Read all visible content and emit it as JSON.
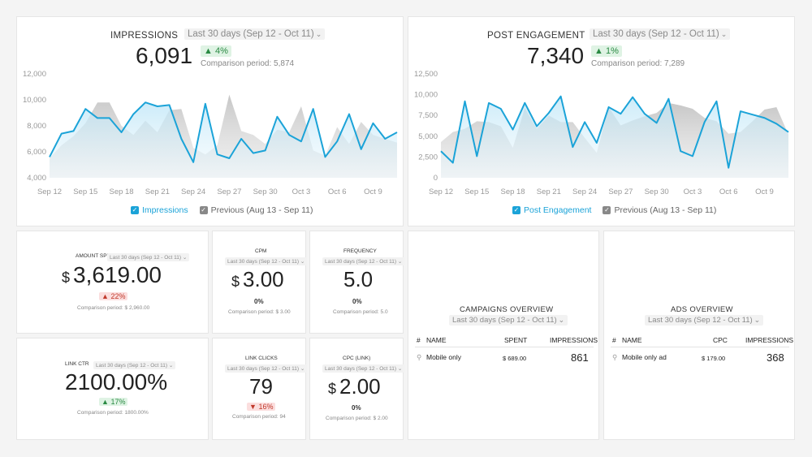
{
  "impressions": {
    "title": "IMPRESSIONS",
    "period": "Last 30 days (Sep 12 - Oct 11)",
    "value": "6,091",
    "change": "4%",
    "comparison": "Comparison period: 5,874",
    "legend_current": "Impressions",
    "legend_previous": "Previous (Aug 13 - Sep 11)",
    "chart_data": {
      "type": "area",
      "y_ticks": [
        "12,000",
        "10,000",
        "8,000",
        "6,000",
        "4,000"
      ],
      "x_ticks": [
        "Sep 12",
        "Sep 15",
        "Sep 18",
        "Sep 21",
        "Sep 24",
        "Sep 27",
        "Sep 30",
        "Oct 3",
        "Oct 6",
        "Oct 9"
      ],
      "ylim": [
        4000,
        12000
      ],
      "current": [
        5600,
        7400,
        7600,
        9300,
        8600,
        8600,
        7500,
        8900,
        9800,
        9500,
        9600,
        7000,
        5200,
        9700,
        5800,
        5500,
        7000,
        5900,
        6100,
        8700,
        7300,
        6800,
        9300,
        5600,
        6800,
        8900,
        6200,
        8200,
        7000,
        7500
      ],
      "previous": [
        5500,
        6500,
        7200,
        8200,
        9800,
        9800,
        8000,
        7300,
        8400,
        7500,
        9200,
        9300,
        6300,
        5800,
        6500,
        10400,
        7600,
        7300,
        6600,
        7700,
        7500,
        9500,
        6100,
        5700,
        7900,
        6600,
        8300,
        7300,
        7000,
        6700
      ]
    }
  },
  "engagement": {
    "title": "POST ENGAGEMENT",
    "period": "Last 30 days (Sep 12 - Oct 11)",
    "value": "7,340",
    "change": "1%",
    "comparison": "Comparison period: 7,289",
    "legend_current": "Post Engagement",
    "legend_previous": "Previous (Aug 13 - Sep 11)",
    "chart_data": {
      "type": "area",
      "y_ticks": [
        "12,500",
        "10,000",
        "7,500",
        "5,000",
        "2,500",
        "0"
      ],
      "x_ticks": [
        "Sep 12",
        "Sep 15",
        "Sep 18",
        "Sep 21",
        "Sep 24",
        "Sep 27",
        "Sep 30",
        "Oct 3",
        "Oct 6",
        "Oct 9"
      ],
      "ylim": [
        0,
        12500
      ],
      "current": [
        3200,
        1800,
        9200,
        2600,
        9000,
        8300,
        5800,
        9000,
        6200,
        7800,
        9800,
        3700,
        6700,
        4200,
        8500,
        7700,
        9700,
        7700,
        6600,
        9500,
        3200,
        2600,
        6700,
        9200,
        1200,
        8000,
        7600,
        7200,
        6500,
        5500
      ],
      "previous": [
        4300,
        5500,
        5900,
        6800,
        6700,
        6200,
        3600,
        8400,
        5900,
        7500,
        6700,
        6700,
        4800,
        3000,
        8500,
        6300,
        6900,
        7400,
        7800,
        9000,
        8700,
        8300,
        7200,
        6800,
        5300,
        5500,
        6800,
        8200,
        8500,
        5200
      ]
    }
  },
  "metrics": [
    {
      "title": "AMOUNT SPENT",
      "period": "Last 30 days (Sep 12 - Oct 11)",
      "currency": "$",
      "value": "3,619.00",
      "change": "22%",
      "trend": "up-red",
      "comparison": "Comparison period: $ 2,960.00"
    },
    {
      "title": "CPM",
      "period": "Last 30 days (Sep 12 - Oct 11)",
      "currency": "$",
      "value": "3.00",
      "change": "0%",
      "trend": "flat",
      "comparison": "Comparison period: $ 3.00"
    },
    {
      "title": "FREQUENCY",
      "period": "Last 30 days (Sep 12 - Oct 11)",
      "currency": "",
      "value": "5.0",
      "change": "0%",
      "trend": "flat",
      "comparison": "Comparison period: 5.0"
    },
    {
      "title": "LINK CTR",
      "period": "Last 30 days (Sep 12 - Oct 11)",
      "currency": "",
      "value": "2100.00%",
      "change": "17%",
      "trend": "up",
      "comparison": "Comparison period: 1800.00%"
    },
    {
      "title": "LINK CLICKS",
      "period": "Last 30 days (Sep 12 - Oct 11)",
      "currency": "",
      "value": "79",
      "change": "16%",
      "trend": "down",
      "comparison": "Comparison period: 94"
    },
    {
      "title": "CPC (LINK)",
      "period": "Last 30 days (Sep 12 - Oct 11)",
      "currency": "$",
      "value": "2.00",
      "change": "0%",
      "trend": "flat",
      "comparison": "Comparison period: $ 2.00"
    }
  ],
  "campaigns": {
    "title": "CAMPAIGNS OVERVIEW",
    "period": "Last 30 days (Sep 12 - Oct 11)",
    "headers": [
      "#",
      "NAME",
      "SPENT",
      "IMPRESSIONS"
    ],
    "rows": [
      {
        "name": "Mobile only",
        "cost": "$ 689.00",
        "value": "861"
      }
    ]
  },
  "ads": {
    "title": "ADS OVERVIEW",
    "period": "Last 30 days (Sep 12 - Oct 11)",
    "headers": [
      "#",
      "NAME",
      "CPC",
      "IMPRESSIONS"
    ],
    "rows": [
      {
        "name": "Mobile only ad",
        "cost": "$ 179.00",
        "value": "368"
      }
    ]
  },
  "colors": {
    "accent": "#1ba3d8",
    "previous": "#c9c9c9",
    "up": "#2a8a43",
    "down": "#c0392b"
  }
}
